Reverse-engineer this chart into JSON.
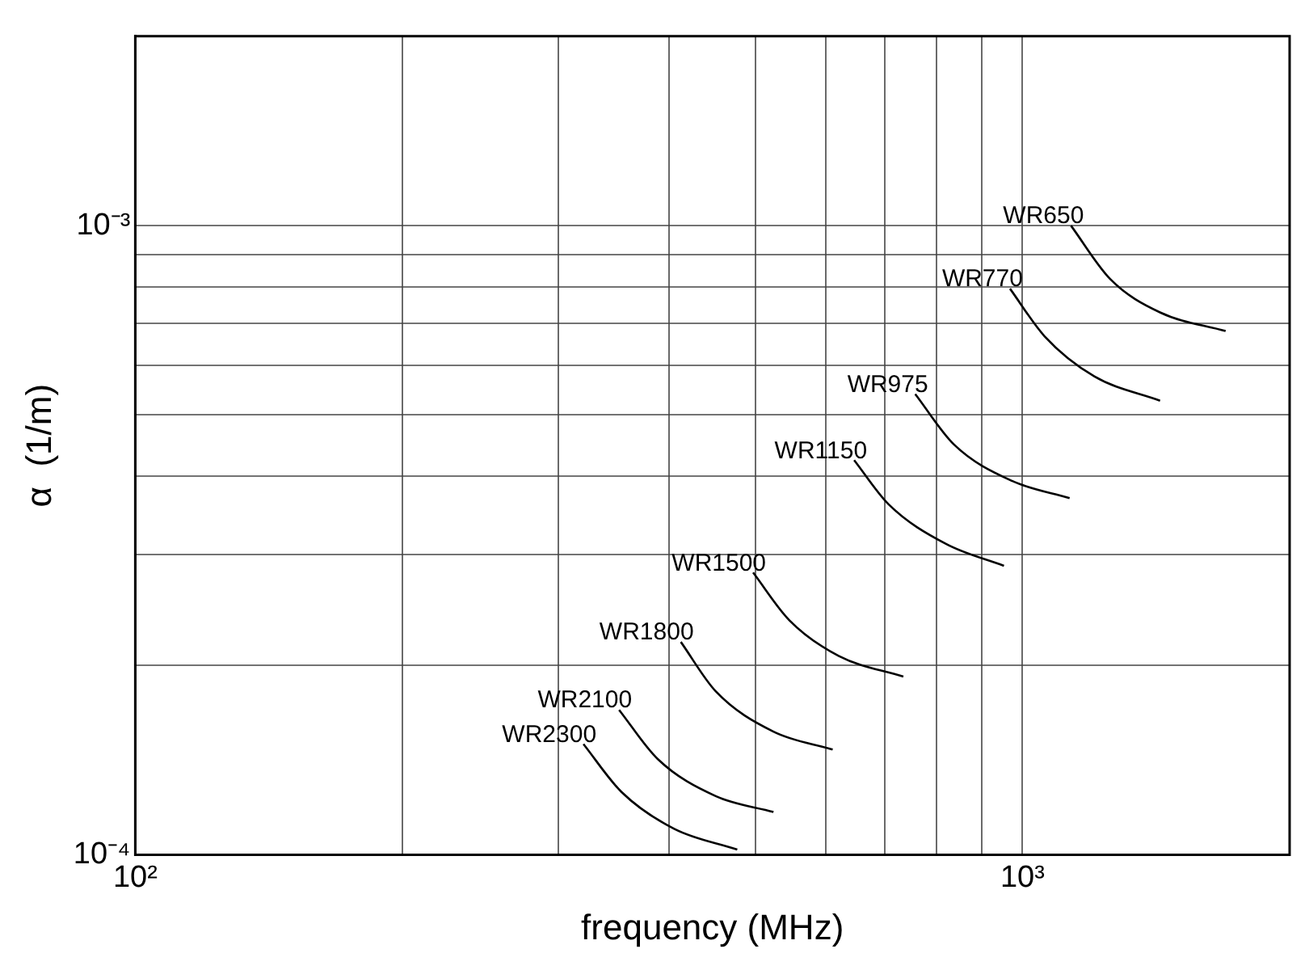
{
  "chart_data": {
    "type": "line",
    "xlabel": "frequency (MHz)",
    "ylabel": "α  (1/m)",
    "xlim": [
      100,
      2000
    ],
    "ylim": [
      0.0001,
      0.002
    ],
    "xticks": [
      {
        "value": 100,
        "label": "10²"
      },
      {
        "value": 200,
        "label": null
      },
      {
        "value": 300,
        "label": null
      },
      {
        "value": 400,
        "label": null
      },
      {
        "value": 500,
        "label": null
      },
      {
        "value": 600,
        "label": null
      },
      {
        "value": 700,
        "label": null
      },
      {
        "value": 800,
        "label": null
      },
      {
        "value": 900,
        "label": null
      },
      {
        "value": 1000,
        "label": "10³"
      }
    ],
    "yticks": [
      {
        "value": 0.0001,
        "label": "10⁻⁴"
      },
      {
        "value": 0.0002,
        "label": null
      },
      {
        "value": 0.0003,
        "label": null
      },
      {
        "value": 0.0004,
        "label": null
      },
      {
        "value": 0.0005,
        "label": null
      },
      {
        "value": 0.0006,
        "label": null
      },
      {
        "value": 0.0007,
        "label": null
      },
      {
        "value": 0.0008,
        "label": null
      },
      {
        "value": 0.0009,
        "label": null
      },
      {
        "value": 0.001,
        "label": "10⁻³"
      }
    ],
    "log": "xy",
    "grid": true,
    "legend": false,
    "marker": "none",
    "line_style": "solid",
    "series": [
      {
        "name": "WR650",
        "color": "#000000",
        "x": [
          1134,
          1256,
          1429,
          1694
        ],
        "values": [
          0.001,
          0.000822,
          0.000728,
          0.00068
        ]
      },
      {
        "name": "WR770",
        "color": "#000000",
        "x": [
          968,
          1059,
          1205,
          1429
        ],
        "values": [
          0.000794,
          0.000667,
          0.000576,
          0.000527
        ]
      },
      {
        "name": "WR975",
        "color": "#000000",
        "x": [
          757,
          837,
          973,
          1130
        ],
        "values": [
          0.00054,
          0.000449,
          0.000393,
          0.000369
        ]
      },
      {
        "name": "WR1150",
        "color": "#000000",
        "x": [
          646,
          706,
          820,
          953
        ],
        "values": [
          0.000424,
          0.000361,
          0.000312,
          0.000288
        ]
      },
      {
        "name": "WR1500",
        "color": "#000000",
        "x": [
          497,
          546,
          621,
          734
        ],
        "values": [
          0.000281,
          0.000236,
          0.000207,
          0.000192
        ]
      },
      {
        "name": "WR1800",
        "color": "#000000",
        "x": [
          412,
          451,
          524,
          611
        ],
        "values": [
          0.000218,
          0.000182,
          0.000157,
          0.000147
        ]
      },
      {
        "name": "WR2100",
        "color": "#000000",
        "x": [
          351,
          388,
          451,
          524
        ],
        "values": [
          0.00017,
          0.000142,
          0.000124,
          0.000117
        ]
      },
      {
        "name": "WR2300",
        "color": "#000000",
        "x": [
          320,
          353,
          405,
          477
        ],
        "values": [
          0.00015,
          0.000126,
          0.00011,
          0.000102
        ]
      }
    ]
  }
}
